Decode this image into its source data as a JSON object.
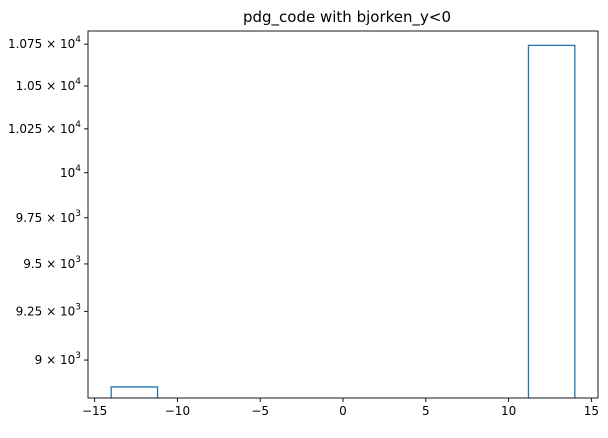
{
  "chart_data": {
    "type": "bar",
    "title": "pdg_code with bjorken_y<0",
    "histtype": "step",
    "series_color": "#1f77b4",
    "y_scale": "log",
    "xlim": [
      -15.4,
      15.4
    ],
    "ylim": [
      8810,
      10830
    ],
    "x_ticks": [
      {
        "value": -15,
        "label": "−15"
      },
      {
        "value": -10,
        "label": "−10"
      },
      {
        "value": -5,
        "label": "−5"
      },
      {
        "value": 0,
        "label": "0"
      },
      {
        "value": 5,
        "label": "5"
      },
      {
        "value": 10,
        "label": "10"
      },
      {
        "value": 15,
        "label": "15"
      }
    ],
    "y_ticks": [
      {
        "value": 9000,
        "mant": "9",
        "exp": "3"
      },
      {
        "value": 9250,
        "mant": "9.25",
        "exp": "3"
      },
      {
        "value": 9500,
        "mant": "9.5",
        "exp": "3"
      },
      {
        "value": 9750,
        "mant": "9.75",
        "exp": "3"
      },
      {
        "value": 10000,
        "mant": "",
        "exp": "4"
      },
      {
        "value": 10250,
        "mant": "1.025",
        "exp": "4"
      },
      {
        "value": 10500,
        "mant": "1.05",
        "exp": "4"
      },
      {
        "value": 10750,
        "mant": "1.075",
        "exp": "4"
      }
    ],
    "bins": [
      {
        "x0": -14,
        "x1": -11.2,
        "count": 8865
      },
      {
        "x0": 11.2,
        "x1": 14,
        "count": 10743
      }
    ]
  }
}
